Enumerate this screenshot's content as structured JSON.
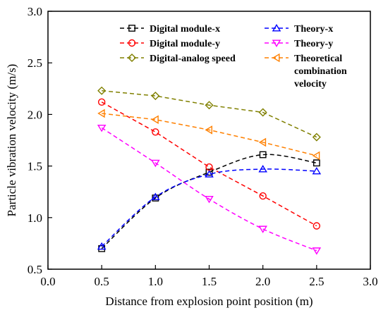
{
  "chart_data": {
    "type": "line",
    "xlabel": "Distance from explosion point position (m)",
    "ylabel": "Particle vibration velocity (m/s)",
    "xlim": [
      0.0,
      3.0
    ],
    "ylim": [
      0.5,
      3.0
    ],
    "xticks": [
      "0.0",
      "0.5",
      "1.0",
      "1.5",
      "2.0",
      "2.5",
      "3.0"
    ],
    "yticks": [
      "0.5",
      "1.0",
      "1.5",
      "2.0",
      "2.5",
      "3.0"
    ],
    "grid": false,
    "legend_placement": "top",
    "series": [
      {
        "name": "Digital module-x",
        "color": "#000000",
        "marker": "square",
        "smooth": true,
        "points": [
          [
            0.5,
            0.7
          ],
          [
            1.0,
            1.19
          ],
          [
            1.5,
            1.44
          ],
          [
            2.0,
            1.61
          ],
          [
            2.5,
            1.53
          ]
        ]
      },
      {
        "name": "Digital module-y",
        "color": "#ff0000",
        "marker": "circle",
        "smooth": false,
        "points": [
          [
            0.5,
            2.12
          ],
          [
            1.0,
            1.83
          ],
          [
            1.5,
            1.49
          ],
          [
            2.0,
            1.21
          ],
          [
            2.5,
            0.92
          ]
        ]
      },
      {
        "name": "Digital-analog speed",
        "color": "#808000",
        "marker": "diamond",
        "smooth": false,
        "points": [
          [
            0.5,
            2.23
          ],
          [
            1.0,
            2.18
          ],
          [
            1.5,
            2.09
          ],
          [
            2.0,
            2.02
          ],
          [
            2.5,
            1.78
          ]
        ]
      },
      {
        "name": "Theory-x",
        "color": "#0000ff",
        "marker": "triangle-up",
        "smooth": true,
        "points": [
          [
            0.5,
            0.72
          ],
          [
            1.0,
            1.2
          ],
          [
            1.5,
            1.42
          ],
          [
            2.0,
            1.47
          ],
          [
            2.5,
            1.45
          ]
        ]
      },
      {
        "name": "Theory-y",
        "color": "#ff00ff",
        "marker": "triangle-down",
        "smooth": true,
        "points": [
          [
            0.5,
            1.87
          ],
          [
            1.0,
            1.53
          ],
          [
            1.5,
            1.18
          ],
          [
            2.0,
            0.89
          ],
          [
            2.5,
            0.68
          ]
        ]
      },
      {
        "name": "Theoretical combination velocity",
        "color": "#ff8000",
        "marker": "triangle-left",
        "smooth": false,
        "points": [
          [
            0.5,
            2.01
          ],
          [
            1.0,
            1.95
          ],
          [
            1.5,
            1.85
          ],
          [
            2.0,
            1.73
          ],
          [
            2.5,
            1.6
          ]
        ]
      }
    ],
    "legend": {
      "col1": [
        "Digital module-x",
        "Digital module-y",
        "Digital-analog speed"
      ],
      "col2": [
        "Theory-x",
        "Theory-y"
      ],
      "col2_wrapped": [
        "Theoretical",
        "combination",
        "velocity"
      ]
    }
  }
}
